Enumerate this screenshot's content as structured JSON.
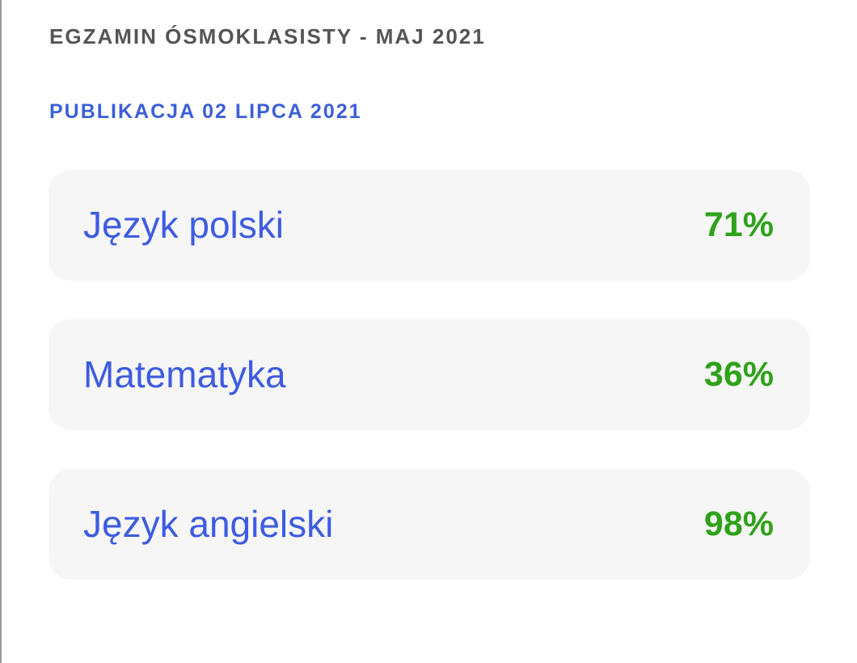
{
  "header": {
    "title": "EGZAMIN ÓSMOKLASISTY - MAJ 2021",
    "subtitle": "PUBLIKACJA 02 LIPCA 2021"
  },
  "results": [
    {
      "subject": "Język polski",
      "score": "71%"
    },
    {
      "subject": "Matematyka",
      "score": "36%"
    },
    {
      "subject": "Język angielski",
      "score": "98%"
    }
  ]
}
